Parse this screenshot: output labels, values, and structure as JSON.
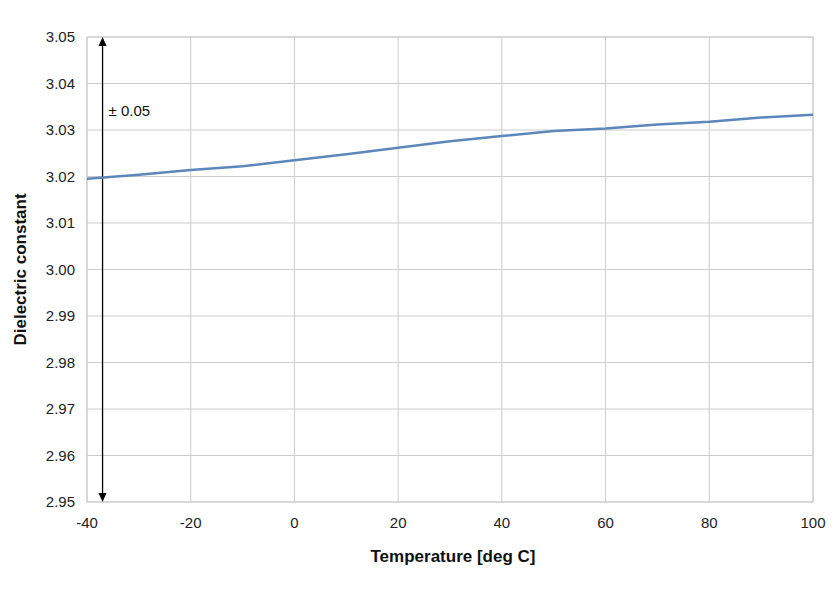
{
  "chart_data": {
    "type": "line",
    "x_label": "Temperature [deg C]",
    "y_label": "Dielectric constant",
    "x": [
      -40,
      -30,
      -20,
      -10,
      0,
      10,
      20,
      30,
      40,
      50,
      60,
      70,
      80,
      90,
      100
    ],
    "series": [
      {
        "name": "Dielectric constant",
        "color": "#5b87bb",
        "values": [
          3.0195,
          3.0204,
          3.0214,
          3.0222,
          3.0235,
          3.0248,
          3.0262,
          3.0276,
          3.0287,
          3.0298,
          3.0303,
          3.0312,
          3.0318,
          3.0327,
          3.0333
        ]
      }
    ],
    "xlim": [
      -40,
      100
    ],
    "xticks": [
      -40,
      -20,
      0,
      20,
      40,
      60,
      80,
      100
    ],
    "ylim": [
      2.95,
      3.05
    ],
    "yticks": [
      2.95,
      2.96,
      2.97,
      2.98,
      2.99,
      {
        "value": 3,
        "label": "3.00"
      },
      3.01,
      3.02,
      3.03,
      3.04,
      3.05
    ],
    "grid": true,
    "annotations": [
      {
        "text": "± 0.05",
        "x": -37,
        "y_range": [
          3.05,
          2.95
        ]
      }
    ]
  }
}
